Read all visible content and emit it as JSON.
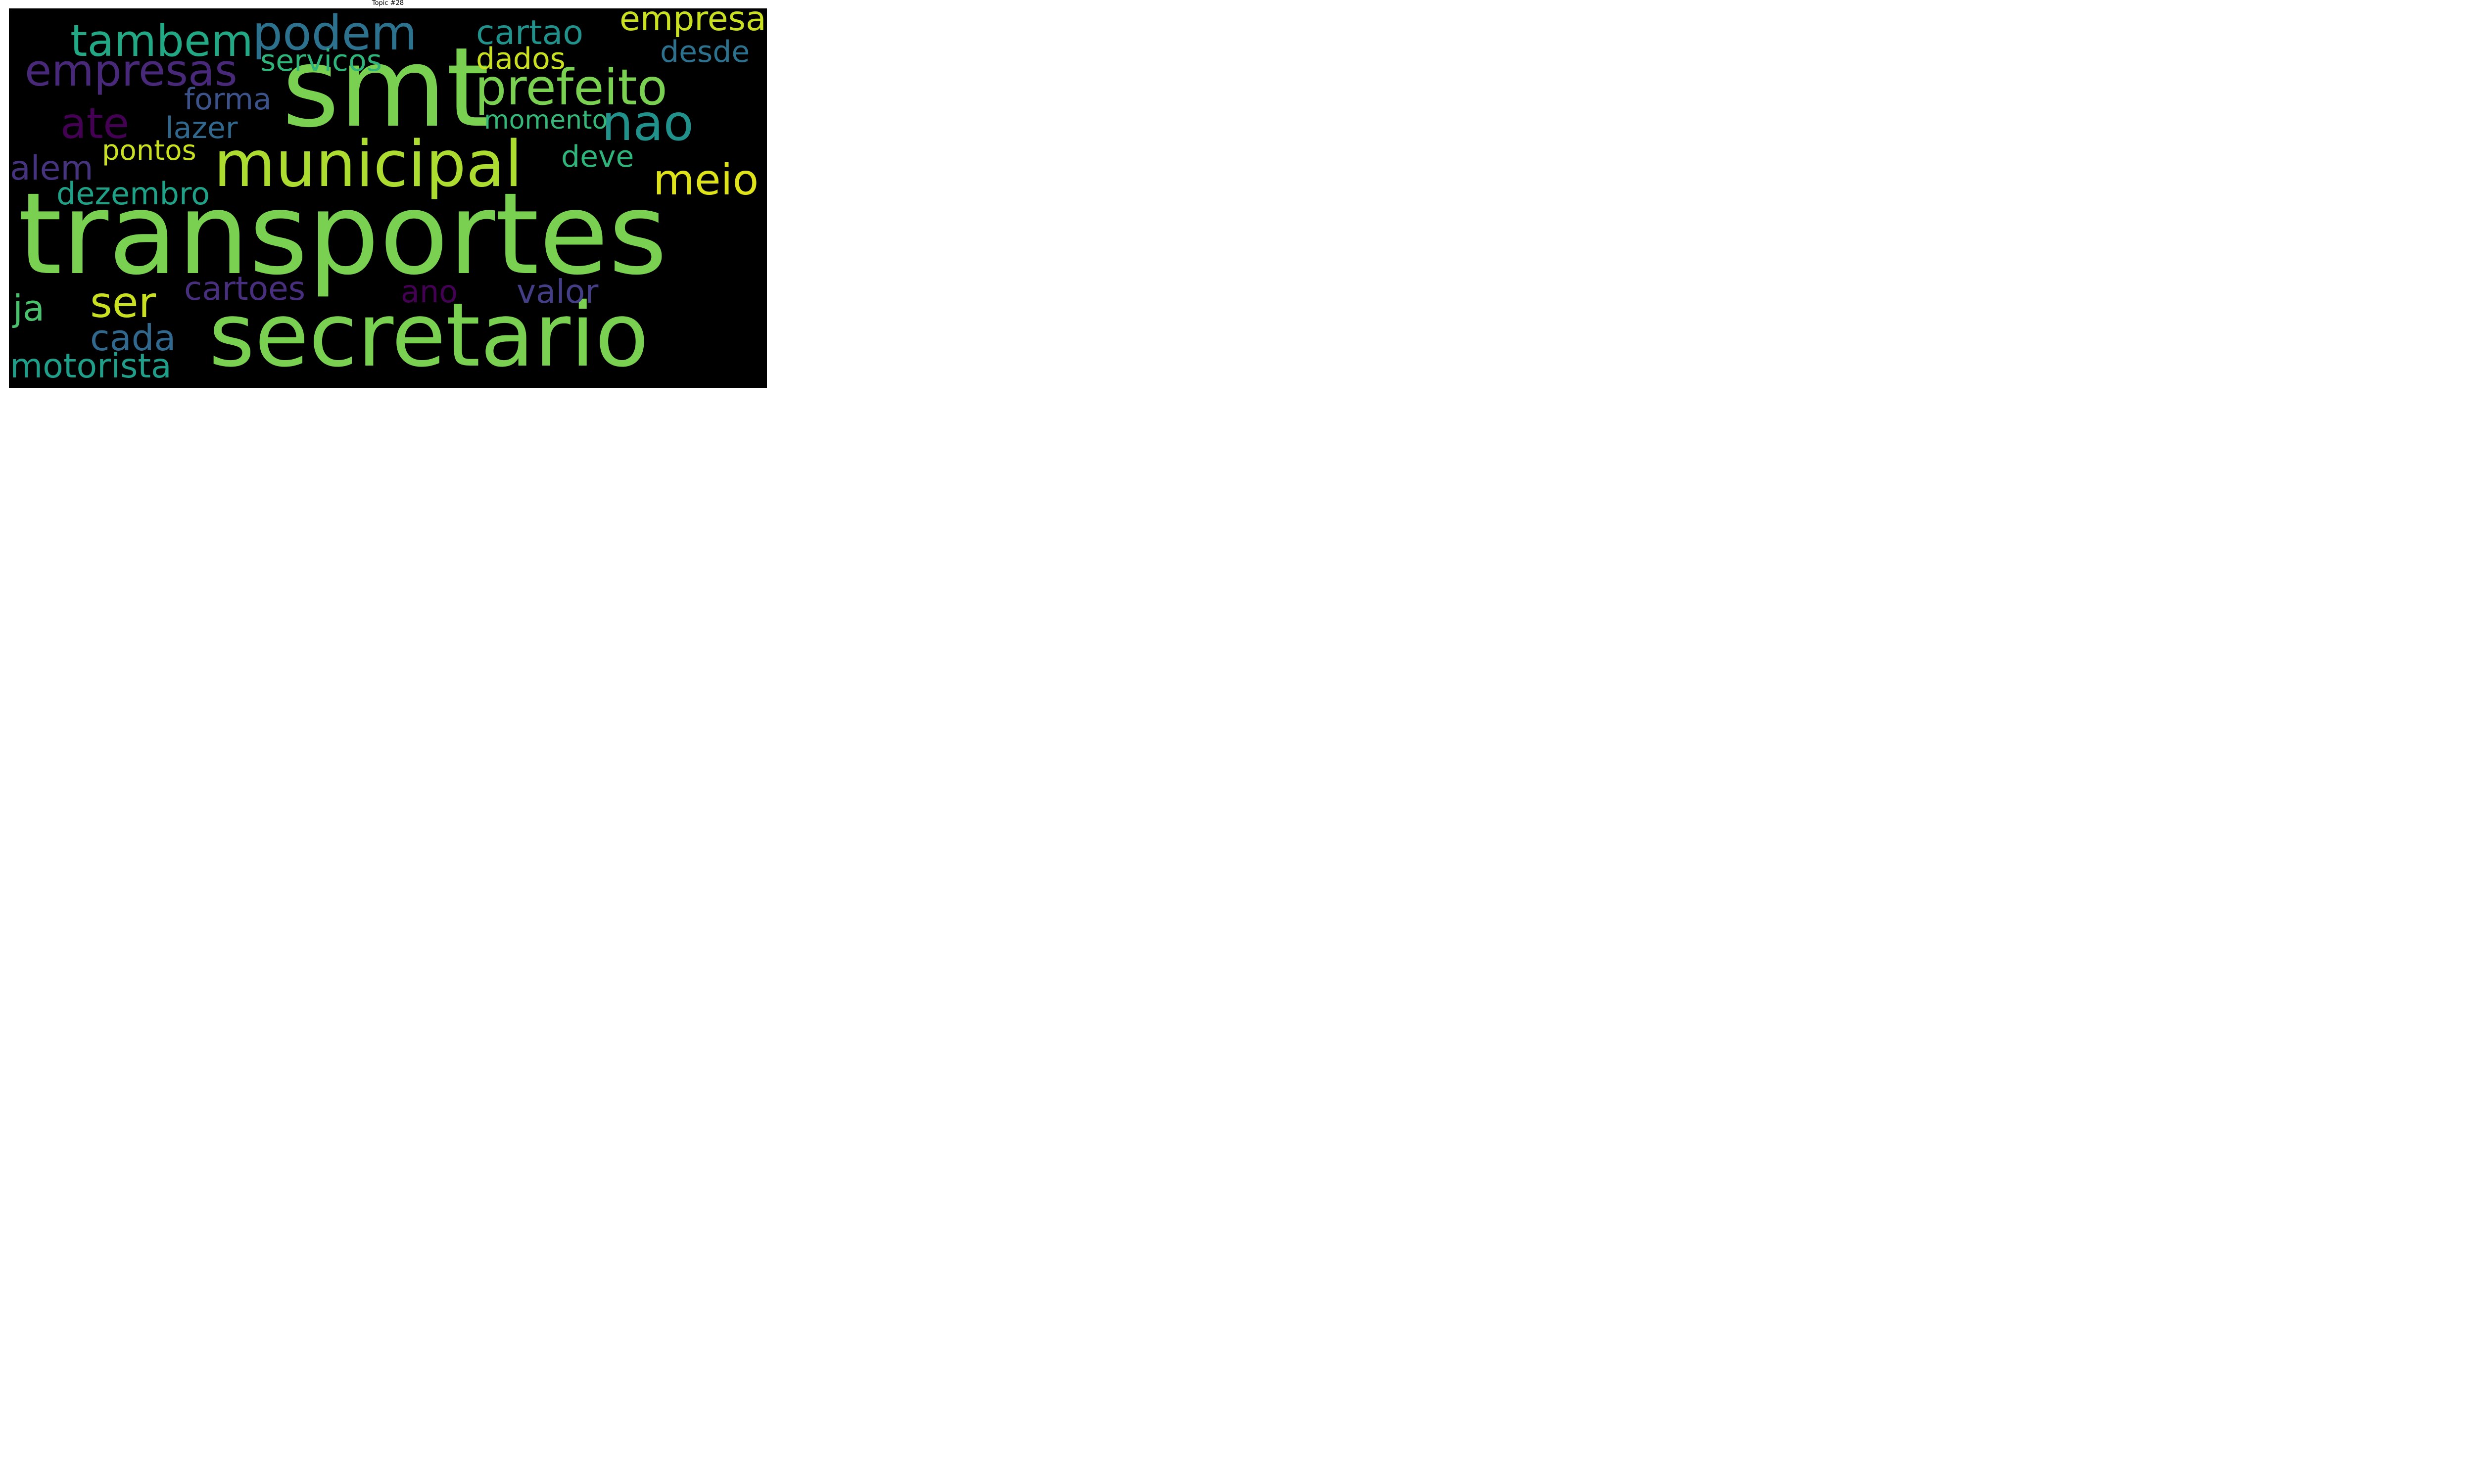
{
  "title": "Topic #28",
  "words": [
    {
      "text": "transportes",
      "color": "#7ad151"
    },
    {
      "text": "smt",
      "color": "#7ad151"
    },
    {
      "text": "secretario",
      "color": "#7ad151"
    },
    {
      "text": "municipal",
      "color": "#addc30"
    },
    {
      "text": "podem",
      "color": "#2c728e"
    },
    {
      "text": "tambem",
      "color": "#22a884"
    },
    {
      "text": "empresas",
      "color": "#482878"
    },
    {
      "text": "prefeito",
      "color": "#7ad151"
    },
    {
      "text": "nao",
      "color": "#21918c"
    },
    {
      "text": "meio",
      "color": "#dde318"
    },
    {
      "text": "ate",
      "color": "#440154"
    },
    {
      "text": "ser",
      "color": "#c8e020"
    },
    {
      "text": "cartao",
      "color": "#21918c"
    },
    {
      "text": "empresa",
      "color": "#c8e020"
    },
    {
      "text": "servicos",
      "color": "#2fb47c"
    },
    {
      "text": "dados",
      "color": "#c8e020"
    },
    {
      "text": "desde",
      "color": "#2c728e"
    },
    {
      "text": "forma",
      "color": "#3b528b"
    },
    {
      "text": "lazer",
      "color": "#31688e"
    },
    {
      "text": "momento",
      "color": "#35b779"
    },
    {
      "text": "pontos",
      "color": "#c8e020"
    },
    {
      "text": "alem",
      "color": "#46337e"
    },
    {
      "text": "deve",
      "color": "#2fb47c"
    },
    {
      "text": "dezembro",
      "color": "#1fa187"
    },
    {
      "text": "cartoes",
      "color": "#472f7d"
    },
    {
      "text": "ano",
      "color": "#440154"
    },
    {
      "text": "valor",
      "color": "#433e85"
    },
    {
      "text": "ja",
      "color": "#4ac16d"
    },
    {
      "text": "cada",
      "color": "#31688e"
    },
    {
      "text": "motorista",
      "color": "#1f9e89"
    }
  ]
}
